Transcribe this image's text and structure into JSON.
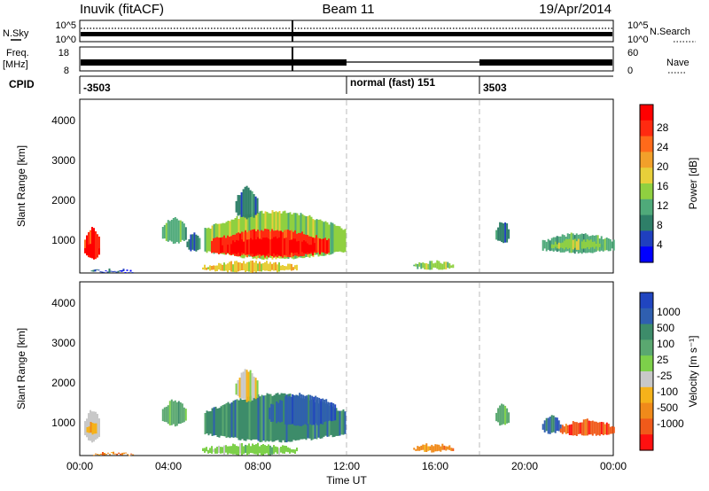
{
  "header": {
    "station": "Inuvik (fitACF)",
    "beam": "Beam 11",
    "date": "19/Apr/2014"
  },
  "top_panels": {
    "noise": {
      "left_label": "N.Sky",
      "right_label": "N.Search",
      "left_ticks": [
        "10^5",
        "10^0"
      ],
      "right_ticks": [
        "10^5",
        "10^0"
      ]
    },
    "freq": {
      "left_label": "Freq.",
      "left_unit": "[MHz]",
      "left_ticks": [
        "18",
        "8"
      ],
      "right_label": "Nave",
      "right_ticks": [
        "60",
        "0"
      ]
    },
    "cpid": {
      "label": "CPID",
      "annotations": [
        {
          "text": "-3503",
          "hour": 0.0
        },
        {
          "text": "normal (fast) 151",
          "hour": 12.0
        },
        {
          "text": "3503",
          "hour": 18.0
        }
      ]
    }
  },
  "chart_data": [
    {
      "type": "heatmap",
      "name": "power",
      "ylabel": "Slant Range [km]",
      "xlim": [
        0,
        24
      ],
      "ylim": [
        180,
        4500
      ],
      "yticks": [
        "1000",
        "2000",
        "3000",
        "4000"
      ],
      "colorbar": {
        "label": "Power [dB]",
        "levels": [
          "4",
          "8",
          "12",
          "16",
          "20",
          "24",
          "28"
        ],
        "colors": [
          "#0000ff",
          "#1f3fbf",
          "#2e7f68",
          "#4faa7a",
          "#8fd040",
          "#e8cf3a",
          "#f2a02a",
          "#ff6a1a",
          "#ff2a10",
          "#ff0000"
        ]
      },
      "blobs": [
        {
          "h0": 0.2,
          "h1": 0.9,
          "r0": 500,
          "r1": 1350,
          "level": 8
        },
        {
          "h0": 0.2,
          "h1": 0.9,
          "r0": 550,
          "r1": 950,
          "level": 9
        },
        {
          "h0": 3.7,
          "h1": 4.8,
          "r0": 900,
          "r1": 1600,
          "level": 3
        },
        {
          "h0": 4.8,
          "h1": 5.4,
          "r0": 700,
          "r1": 1200,
          "level": 2
        },
        {
          "h0": 5.6,
          "h1": 11.9,
          "r0": 500,
          "r1": 1750,
          "level": 4
        },
        {
          "h0": 5.9,
          "h1": 11.2,
          "r0": 550,
          "r1": 1300,
          "level": 8
        },
        {
          "h0": 6.3,
          "h1": 10.6,
          "r0": 600,
          "r1": 1100,
          "level": 9
        },
        {
          "h0": 7.0,
          "h1": 8.0,
          "r0": 1500,
          "r1": 2350,
          "level": 2
        },
        {
          "h0": 0.5,
          "h1": 2.4,
          "r0": 180,
          "r1": 300,
          "level": 1
        },
        {
          "h0": 5.5,
          "h1": 9.8,
          "r0": 180,
          "r1": 500,
          "level": 5
        },
        {
          "h0": 15.0,
          "h1": 16.8,
          "r0": 250,
          "r1": 500,
          "level": 4
        },
        {
          "h0": 18.7,
          "h1": 19.3,
          "r0": 900,
          "r1": 1500,
          "level": 2
        },
        {
          "h0": 20.8,
          "h1": 24.0,
          "r0": 650,
          "r1": 1200,
          "level": 3
        },
        {
          "h0": 21.2,
          "h1": 23.5,
          "r0": 750,
          "r1": 1050,
          "level": 4
        }
      ]
    },
    {
      "type": "heatmap",
      "name": "velocity",
      "ylabel": "Slant Range [km]",
      "xlim": [
        0,
        24
      ],
      "ylim": [
        180,
        4500
      ],
      "xticks": [
        "00:00",
        "04:00",
        "08:00",
        "12:00",
        "16:00",
        "20:00",
        "00:00"
      ],
      "xlabel": "Time UT",
      "yticks": [
        "1000",
        "2000",
        "3000",
        "4000"
      ],
      "colorbar": {
        "label": "Velocity [m s⁻¹]",
        "levels": [
          "1000",
          "500",
          "100",
          "25",
          "-25",
          "-100",
          "-500",
          "-1000"
        ],
        "colors": [
          "#2045c0",
          "#2f5fb0",
          "#3d8c6a",
          "#5aa870",
          "#7dd04a",
          "#c8c8c8",
          "#f5b21a",
          "#f08a1a",
          "#f05a1a",
          "#ff1010"
        ]
      },
      "blobs": [
        {
          "h0": 0.2,
          "h1": 0.9,
          "r0": 500,
          "r1": 1350,
          "level": 5
        },
        {
          "h0": 0.3,
          "h1": 0.8,
          "r0": 700,
          "r1": 1050,
          "level": 6
        },
        {
          "h0": 3.7,
          "h1": 4.8,
          "r0": 900,
          "r1": 1600,
          "level": 3
        },
        {
          "h0": 5.6,
          "h1": 11.9,
          "r0": 500,
          "r1": 1750,
          "level": 2
        },
        {
          "h0": 8.5,
          "h1": 11.5,
          "r0": 900,
          "r1": 1750,
          "level": 1
        },
        {
          "h0": 7.0,
          "h1": 8.0,
          "r0": 1500,
          "r1": 2350,
          "level": 5
        },
        {
          "h0": 0.6,
          "h1": 2.4,
          "r0": 180,
          "r1": 300,
          "level": 7
        },
        {
          "h0": 5.5,
          "h1": 9.8,
          "r0": 180,
          "r1": 500,
          "level": 4
        },
        {
          "h0": 15.0,
          "h1": 16.8,
          "r0": 250,
          "r1": 500,
          "level": 7
        },
        {
          "h0": 18.7,
          "h1": 19.3,
          "r0": 900,
          "r1": 1500,
          "level": 3
        },
        {
          "h0": 20.8,
          "h1": 21.6,
          "r0": 700,
          "r1": 1200,
          "level": 1
        },
        {
          "h0": 21.6,
          "h1": 24.0,
          "r0": 650,
          "r1": 1100,
          "level": 8
        }
      ]
    }
  ]
}
